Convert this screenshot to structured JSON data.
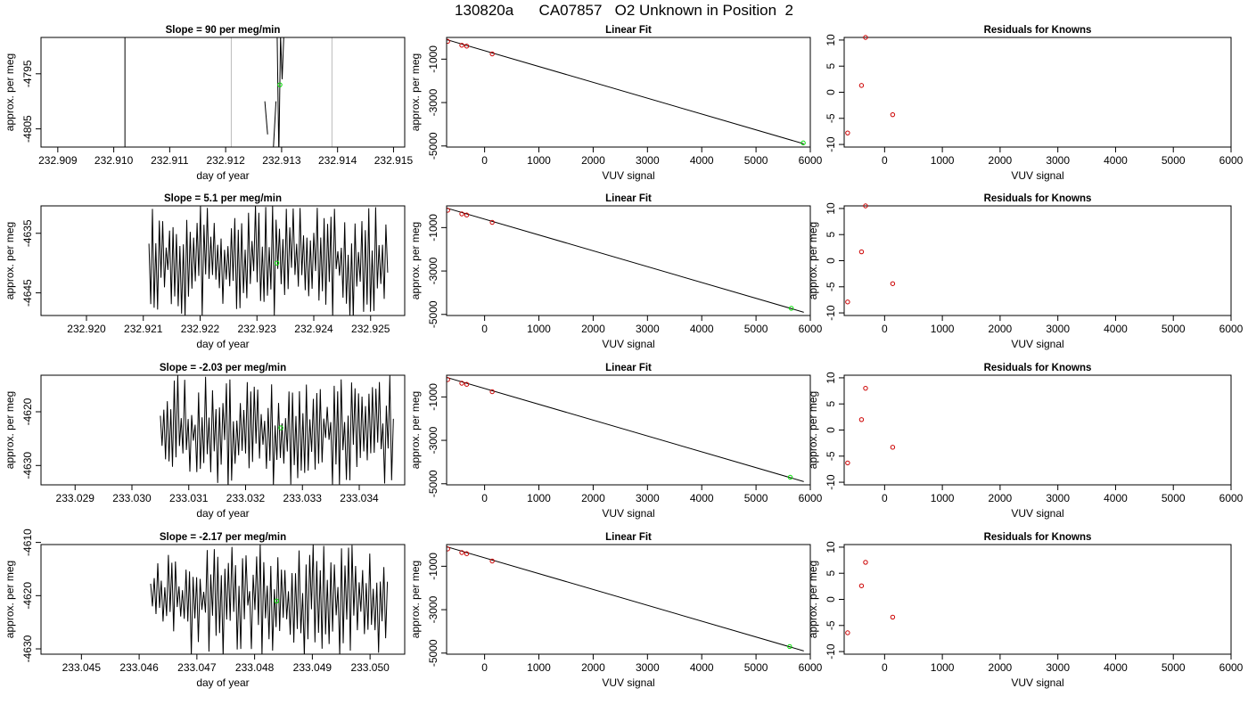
{
  "title": "130820a      CA07857   O2 Unknown in Position  2",
  "colors": {
    "line": "#000000",
    "known_point": "#cc0000",
    "unknown_point": "#00dd00",
    "vline_dark": "#000000",
    "vline_light": "#bbbbbb",
    "axis": "#000000"
  },
  "chart_data": [
    {
      "row": 1,
      "panel": "time-series",
      "type": "line",
      "title": "Slope =  90  per meg/min",
      "xlabel": "day of year",
      "ylabel": "approx. per meg",
      "xlim": [
        232.9087,
        232.9152
      ],
      "ylim": [
        -4808.3,
        -4788.4
      ],
      "xticks": [
        232.909,
        232.91,
        232.911,
        232.912,
        232.913,
        232.914,
        232.915
      ],
      "xtick_labels": [
        "232.909",
        "232.910",
        "232.911",
        "232.912",
        "232.913",
        "232.914",
        "232.915"
      ],
      "yticks": [
        -4795,
        -4805
      ],
      "ytick_labels": [
        "-4795",
        "-4805"
      ],
      "vlines": [
        {
          "x": 232.9102,
          "style": "dark"
        },
        {
          "x": 232.9121,
          "style": "light"
        },
        {
          "x": 232.9139,
          "style": "light"
        }
      ],
      "series": [
        {
          "x": [
            232.9127,
            232.91275
          ],
          "y": [
            -4800,
            -4806
          ],
          "style": "line"
        },
        {
          "x": [
            232.91285,
            232.9129
          ],
          "y": [
            -4809,
            -4800
          ],
          "style": "line"
        },
        {
          "x": [
            232.91292,
            232.91295,
            232.91298,
            232.91301,
            232.91304
          ],
          "y": [
            -4788,
            -4810,
            -4788,
            -4796,
            -4788
          ],
          "style": "line"
        }
      ],
      "unknown_point": {
        "x": 232.91297,
        "y": -4797
      }
    },
    {
      "row": 1,
      "panel": "linear-fit",
      "type": "scatter",
      "title": "Linear Fit",
      "xlabel": "VUV signal",
      "ylabel": "approx. per meg",
      "xlim": [
        -700,
        6000
      ],
      "ylim": [
        -5050,
        0
      ],
      "xticks": [
        0,
        1000,
        2000,
        3000,
        4000,
        5000,
        6000
      ],
      "xtick_labels": [
        "0",
        "1000",
        "2000",
        "3000",
        "4000",
        "5000",
        "6000"
      ],
      "yticks": [
        -1000,
        -3000,
        -5000
      ],
      "ytick_labels": [
        "-1000",
        "-3000",
        "-5000"
      ],
      "fit_line": {
        "x": [
          -700,
          5880
        ],
        "y": [
          -100,
          -4900
        ]
      },
      "knowns": {
        "x": [
          -680,
          -420,
          -330,
          140
        ],
        "y": [
          -180,
          -360,
          -400,
          -760
        ]
      },
      "unknown": {
        "x": 5870,
        "y": -4860
      }
    },
    {
      "row": 1,
      "panel": "residuals",
      "type": "scatter",
      "title": "Residuals for Knowns",
      "xlabel": "VUV signal",
      "ylabel": "",
      "xlim": [
        -700,
        6000
      ],
      "ylim": [
        -10.5,
        10.5
      ],
      "xticks": [
        0,
        1000,
        2000,
        3000,
        4000,
        5000,
        6000
      ],
      "xtick_labels": [
        "0",
        "1000",
        "2000",
        "3000",
        "4000",
        "5000",
        "6000"
      ],
      "yticks": [
        10,
        5,
        0,
        -5,
        -10
      ],
      "ytick_labels": [
        "10",
        "5",
        "0",
        "-5",
        "-10"
      ],
      "knowns": {
        "x": [
          -640,
          -400,
          -330,
          140
        ],
        "y": [
          -7.8,
          1.3,
          10.5,
          -4.3
        ]
      }
    },
    {
      "row": 2,
      "panel": "time-series",
      "type": "line",
      "title": "Slope =  5.1  per meg/min",
      "xlabel": "day of year",
      "ylabel": "approx. per meg",
      "xlim": [
        232.9192,
        232.9256
      ],
      "ylim": [
        -4648.8,
        -4630.4
      ],
      "xticks": [
        232.92,
        232.921,
        232.922,
        232.923,
        232.924,
        232.925
      ],
      "xtick_labels": [
        "232.920",
        "232.921",
        "232.922",
        "232.923",
        "232.924",
        "232.925"
      ],
      "yticks": [
        -4635,
        -4645
      ],
      "ytick_labels": [
        "-4635",
        "-4645"
      ],
      "vlines": [],
      "noise": {
        "start": 232.9211,
        "end": 232.9253,
        "n": 140,
        "lo": -4649.5,
        "hi": -4630.0,
        "seed": 11
      },
      "unknown_point": {
        "x": 232.92335,
        "y": -4640
      }
    },
    {
      "row": 2,
      "panel": "linear-fit",
      "type": "scatter",
      "title": "Linear Fit",
      "xlabel": "VUV signal",
      "ylabel": "approx. per meg",
      "xlim": [
        -700,
        6000
      ],
      "ylim": [
        -5050,
        0
      ],
      "xticks": [
        0,
        1000,
        2000,
        3000,
        4000,
        5000,
        6000
      ],
      "xtick_labels": [
        "0",
        "1000",
        "2000",
        "3000",
        "4000",
        "5000",
        "6000"
      ],
      "yticks": [
        -1000,
        -3000,
        -5000
      ],
      "ytick_labels": [
        "-1000",
        "-3000",
        "-5000"
      ],
      "fit_line": {
        "x": [
          -700,
          5880
        ],
        "y": [
          -100,
          -4900
        ]
      },
      "knowns": {
        "x": [
          -680,
          -420,
          -330,
          140
        ],
        "y": [
          -200,
          -370,
          -420,
          -760
        ]
      },
      "unknown": {
        "x": 5650,
        "y": -4720
      }
    },
    {
      "row": 2,
      "panel": "residuals",
      "type": "scatter",
      "title": "Residuals for Knowns",
      "xlabel": "VUV signal",
      "ylabel": "approx. per meg",
      "xlim": [
        -700,
        6000
      ],
      "ylim": [
        -10.5,
        10.5
      ],
      "xticks": [
        0,
        1000,
        2000,
        3000,
        4000,
        5000,
        6000
      ],
      "xtick_labels": [
        "0",
        "1000",
        "2000",
        "3000",
        "4000",
        "5000",
        "6000"
      ],
      "yticks": [
        10,
        5,
        0,
        -5,
        -10
      ],
      "ytick_labels": [
        "10",
        "5",
        "0",
        "-5",
        "-10"
      ],
      "knowns": {
        "x": [
          -640,
          -400,
          -330,
          140
        ],
        "y": [
          -7.9,
          1.7,
          10.5,
          -4.4
        ]
      }
    },
    {
      "row": 3,
      "panel": "time-series",
      "type": "line",
      "title": "Slope =  -2.03  per meg/min",
      "xlabel": "day of year",
      "ylabel": "approx. per meg",
      "xlim": [
        233.0284,
        233.0348
      ],
      "ylim": [
        -4633.6,
        -4613.2
      ],
      "xticks": [
        233.029,
        233.03,
        233.031,
        233.032,
        233.033,
        233.034
      ],
      "xtick_labels": [
        "233.029",
        "233.030",
        "233.031",
        "233.032",
        "233.033",
        "233.034"
      ],
      "yticks": [
        -4620,
        -4630
      ],
      "ytick_labels": [
        "-4620",
        "-4630"
      ],
      "vlines": [],
      "noise": {
        "start": 233.0305,
        "end": 233.0346,
        "n": 135,
        "lo": -4634.5,
        "hi": -4613.0,
        "seed": 23
      },
      "unknown_point": {
        "x": 233.03262,
        "y": -4623
      }
    },
    {
      "row": 3,
      "panel": "linear-fit",
      "type": "scatter",
      "title": "Linear Fit",
      "xlabel": "VUV signal",
      "ylabel": "approx. per meg",
      "xlim": [
        -700,
        6000
      ],
      "ylim": [
        -5050,
        0
      ],
      "xticks": [
        0,
        1000,
        2000,
        3000,
        4000,
        5000,
        6000
      ],
      "xtick_labels": [
        "0",
        "1000",
        "2000",
        "3000",
        "4000",
        "5000",
        "6000"
      ],
      "yticks": [
        -1000,
        -3000,
        -5000
      ],
      "ytick_labels": [
        "-1000",
        "-3000",
        "-5000"
      ],
      "fit_line": {
        "x": [
          -700,
          5880
        ],
        "y": [
          -100,
          -4900
        ]
      },
      "knowns": {
        "x": [
          -680,
          -420,
          -330,
          140
        ],
        "y": [
          -200,
          -370,
          -420,
          -760
        ]
      },
      "unknown": {
        "x": 5630,
        "y": -4700
      }
    },
    {
      "row": 3,
      "panel": "residuals",
      "type": "scatter",
      "title": "Residuals for Knowns",
      "xlabel": "VUV signal",
      "ylabel": "approx. per meg",
      "xlim": [
        -700,
        6000
      ],
      "ylim": [
        -10.5,
        10.5
      ],
      "xticks": [
        0,
        1000,
        2000,
        3000,
        4000,
        5000,
        6000
      ],
      "xtick_labels": [
        "0",
        "1000",
        "2000",
        "3000",
        "4000",
        "5000",
        "6000"
      ],
      "yticks": [
        10,
        5,
        0,
        -5,
        -10
      ],
      "ytick_labels": [
        "10",
        "5",
        "0",
        "-5",
        "-10"
      ],
      "knowns": {
        "x": [
          -640,
          -400,
          -330,
          140
        ],
        "y": [
          -6.3,
          2.0,
          8.0,
          -3.3
        ]
      }
    },
    {
      "row": 4,
      "panel": "time-series",
      "type": "line",
      "title": "Slope =  -2.17  per meg/min",
      "xlabel": "day of year",
      "ylabel": "approx. per meg",
      "xlim": [
        233.0443,
        233.0506
      ],
      "ylim": [
        -4631.0,
        -4610.4
      ],
      "xticks": [
        233.045,
        233.046,
        233.047,
        233.048,
        233.049,
        233.05
      ],
      "xtick_labels": [
        "233.045",
        "233.046",
        "233.047",
        "233.048",
        "233.049",
        "233.050"
      ],
      "yticks": [
        -4610,
        -4620,
        -4630
      ],
      "ytick_labels": [
        "-4610",
        "-4620",
        "-4630"
      ],
      "vlines": [],
      "noise": {
        "start": 233.0462,
        "end": 233.0503,
        "n": 135,
        "lo": -4631.5,
        "hi": -4610.0,
        "seed": 37
      },
      "unknown_point": {
        "x": 233.04838,
        "y": -4621
      }
    },
    {
      "row": 4,
      "panel": "linear-fit",
      "type": "scatter",
      "title": "Linear Fit",
      "xlabel": "VUV signal",
      "ylabel": "approx. per meg",
      "xlim": [
        -700,
        6000
      ],
      "ylim": [
        -5050,
        0
      ],
      "xticks": [
        0,
        1000,
        2000,
        3000,
        4000,
        5000,
        6000
      ],
      "xtick_labels": [
        "0",
        "1000",
        "2000",
        "3000",
        "4000",
        "5000",
        "6000"
      ],
      "yticks": [
        -1000,
        -3000,
        -5000
      ],
      "ytick_labels": [
        "-1000",
        "-3000",
        "-5000"
      ],
      "fit_line": {
        "x": [
          -700,
          5880
        ],
        "y": [
          -100,
          -4900
        ]
      },
      "knowns": {
        "x": [
          -680,
          -420,
          -330,
          140
        ],
        "y": [
          -200,
          -370,
          -420,
          -760
        ]
      },
      "unknown": {
        "x": 5620,
        "y": -4700
      }
    },
    {
      "row": 4,
      "panel": "residuals",
      "type": "scatter",
      "title": "Residuals for Knowns",
      "xlabel": "VUV signal",
      "ylabel": "approx. per meg",
      "xlim": [
        -700,
        6000
      ],
      "ylim": [
        -10.5,
        10.5
      ],
      "xticks": [
        0,
        1000,
        2000,
        3000,
        4000,
        5000,
        6000
      ],
      "xtick_labels": [
        "0",
        "1000",
        "2000",
        "3000",
        "4000",
        "5000",
        "6000"
      ],
      "yticks": [
        10,
        5,
        0,
        -5,
        -10
      ],
      "ytick_labels": [
        "10",
        "5",
        "0",
        "-5",
        "-10"
      ],
      "knowns": {
        "x": [
          -640,
          -400,
          -330,
          140
        ],
        "y": [
          -6.4,
          2.6,
          7.1,
          -3.4
        ]
      }
    }
  ]
}
